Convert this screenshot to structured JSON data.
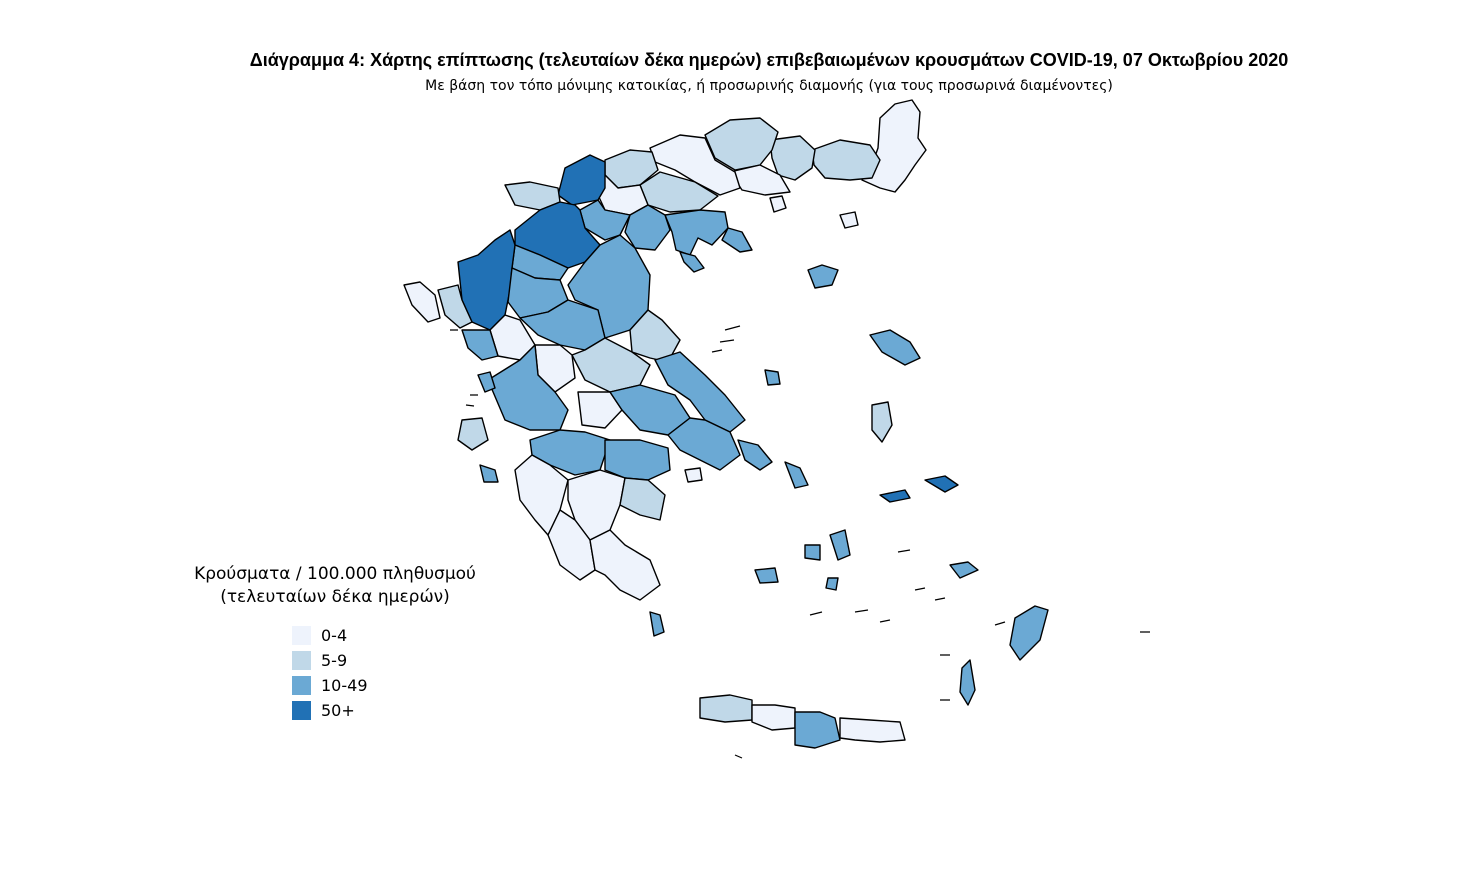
{
  "title": "Διάγραμμα 4: Χάρτης επίπτωσης (τελευταίων δέκα ημερών) επιβεβαιωμένων κρουσμάτων COVID-19, 07 Οκτωβρίου 2020",
  "subtitle": "Με βάση τον τόπο μόνιμης κατοικίας, ή προσωρινής διαμονής (για τους προσωρινά διαμένοντες)",
  "legend": {
    "title_line1": "Κρούσματα / 100.000 πληθυσμού",
    "title_line2": "(τελευταίων δέκα ημερών)",
    "items": [
      {
        "label": "0-4",
        "color": "#eef3fc"
      },
      {
        "label": "5-9",
        "color": "#c0d8e8"
      },
      {
        "label": "10-49",
        "color": "#6ba9d4"
      },
      {
        "label": "50+",
        "color": "#2171b5"
      }
    ]
  },
  "map": {
    "stroke_color": "#000000",
    "no_data_color": "#ffffff"
  }
}
